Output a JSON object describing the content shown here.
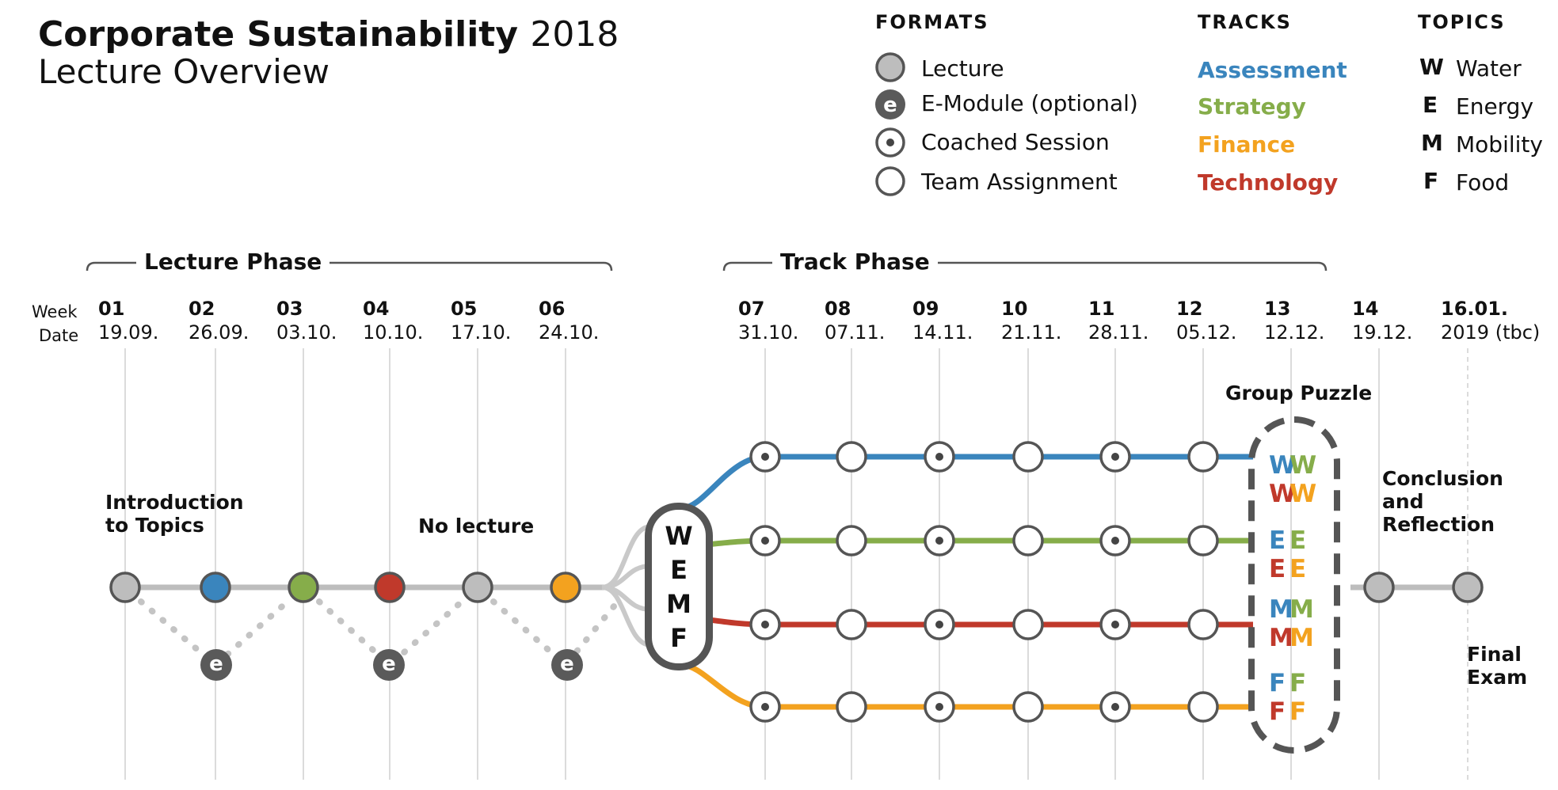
{
  "title": {
    "main": "Corporate Sustainability",
    "year": "2018",
    "subtitle": "Lecture Overview"
  },
  "legend": {
    "formats": {
      "heading": "FORMATS",
      "items": [
        {
          "label": "Lecture",
          "icon": "lecture-circle-icon"
        },
        {
          "label": "E-Module (optional)",
          "icon": "e-module-icon",
          "glyph": "e"
        },
        {
          "label": "Coached Session",
          "icon": "coached-session-icon"
        },
        {
          "label": "Team Assignment",
          "icon": "team-assignment-icon"
        }
      ]
    },
    "tracks": {
      "heading": "TRACKS",
      "items": [
        {
          "label": "Assessment",
          "color": "#3a85bd"
        },
        {
          "label": "Strategy",
          "color": "#86ad4a"
        },
        {
          "label": "Finance",
          "color": "#f3a21f"
        },
        {
          "label": "Technology",
          "color": "#c0392b"
        }
      ]
    },
    "topics": {
      "heading": "TOPICS",
      "items": [
        {
          "letter": "W",
          "label": "Water"
        },
        {
          "letter": "E",
          "label": "Energy"
        },
        {
          "letter": "M",
          "label": "Mobility"
        },
        {
          "letter": "F",
          "label": "Food"
        }
      ]
    }
  },
  "phases": {
    "lecture": "Lecture Phase",
    "track": "Track Phase"
  },
  "row_labels": {
    "week": "Week",
    "date": "Date"
  },
  "weeks": [
    {
      "num": "01",
      "date": "19.09."
    },
    {
      "num": "02",
      "date": "26.09."
    },
    {
      "num": "03",
      "date": "03.10."
    },
    {
      "num": "04",
      "date": "10.10."
    },
    {
      "num": "05",
      "date": "17.10."
    },
    {
      "num": "06",
      "date": "24.10."
    },
    {
      "num": "07",
      "date": "31.10."
    },
    {
      "num": "08",
      "date": "07.11."
    },
    {
      "num": "09",
      "date": "14.11."
    },
    {
      "num": "10",
      "date": "21.11."
    },
    {
      "num": "11",
      "date": "28.11."
    },
    {
      "num": "12",
      "date": "05.12."
    },
    {
      "num": "13",
      "date": "12.12."
    },
    {
      "num": "14",
      "date": "19.12."
    },
    {
      "num": "16.01.",
      "date": "2019 (tbc)"
    }
  ],
  "annotations": {
    "intro_line1": "Introduction",
    "intro_line2": "to Topics",
    "no_lecture": "No lecture",
    "group_puzzle": "Group Puzzle",
    "conclusion_line1": "Conclusion",
    "conclusion_line2": "and",
    "conclusion_line3": "Reflection",
    "final_line1": "Final",
    "final_line2": "Exam"
  },
  "e_module_glyph": "e",
  "wemf": [
    "W",
    "E",
    "M",
    "F"
  ],
  "lecture_colors": [
    "#bdbdbd",
    "#3a85bd",
    "#86ad4a",
    "#c0392b",
    "#bdbdbd",
    "#f3a21f"
  ],
  "track_session_pattern": [
    "coached",
    "team",
    "coached",
    "team",
    "coached",
    "team"
  ],
  "group_puzzle_letters": [
    {
      "top": [
        "W",
        "W"
      ],
      "bottom": [
        "W",
        "W"
      ]
    },
    {
      "top": [
        "E",
        "E"
      ],
      "bottom": [
        "E",
        "E"
      ]
    },
    {
      "top": [
        "M",
        "M"
      ],
      "bottom": [
        "M",
        "M"
      ]
    },
    {
      "top": [
        "F",
        "F"
      ],
      "bottom": [
        "F",
        "F"
      ]
    }
  ],
  "group_puzzle_colors": {
    "top": [
      "#3a85bd",
      "#86ad4a"
    ],
    "bottom": [
      "#c0392b",
      "#f3a21f"
    ]
  }
}
